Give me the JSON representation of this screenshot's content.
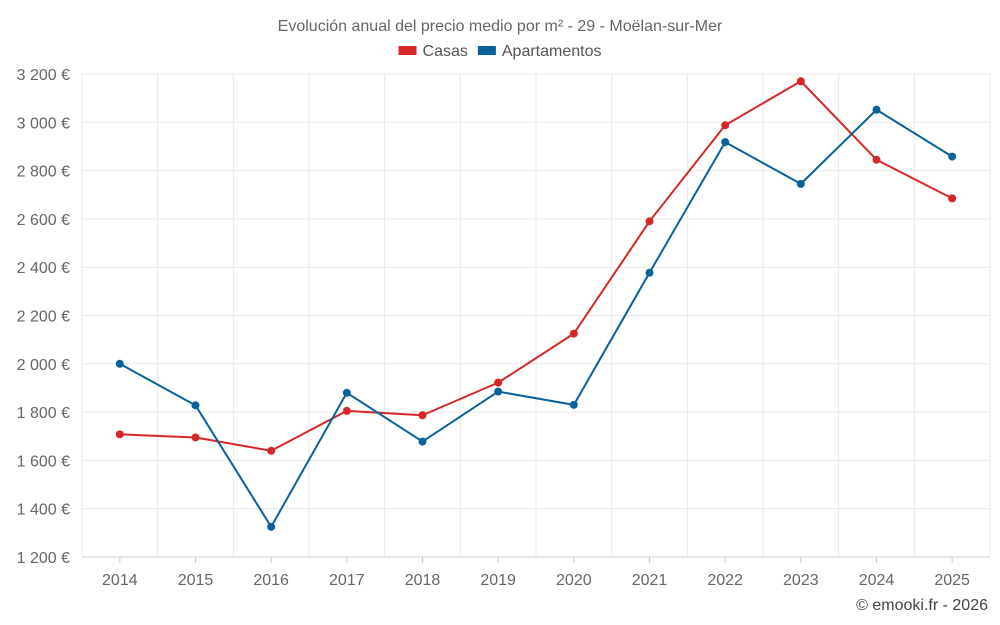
{
  "chart_data": {
    "type": "line",
    "title": "Evolución anual del precio medio por m² - 29 - Moëlan-sur-Mer",
    "categories": [
      "2014",
      "2015",
      "2016",
      "2017",
      "2018",
      "2019",
      "2020",
      "2021",
      "2022",
      "2023",
      "2024",
      "2025"
    ],
    "series": [
      {
        "name": "Casas",
        "color": "#d62728",
        "values": [
          1708,
          1695,
          1640,
          1805,
          1787,
          1922,
          2125,
          2590,
          2988,
          3170,
          2845,
          2685
        ]
      },
      {
        "name": "Apartamentos",
        "color": "#08629a",
        "values": [
          2000,
          1828,
          1325,
          1880,
          1678,
          1885,
          1830,
          2377,
          2918,
          2745,
          3052,
          2858
        ]
      }
    ],
    "ylim": [
      1200,
      3200
    ],
    "yticks": [
      1200,
      1400,
      1600,
      1800,
      2000,
      2200,
      2400,
      2600,
      2800,
      3000,
      3200
    ],
    "ytick_labels": [
      "1 200 €",
      "1 400 €",
      "1 600 €",
      "1 800 €",
      "2 000 €",
      "2 200 €",
      "2 400 €",
      "2 600 €",
      "2 800 €",
      "3 000 €",
      "3 200 €"
    ],
    "xlabel": "",
    "ylabel": "",
    "grid": true,
    "legend_position": "top-center"
  },
  "credit": "© emooki.fr - 2026"
}
